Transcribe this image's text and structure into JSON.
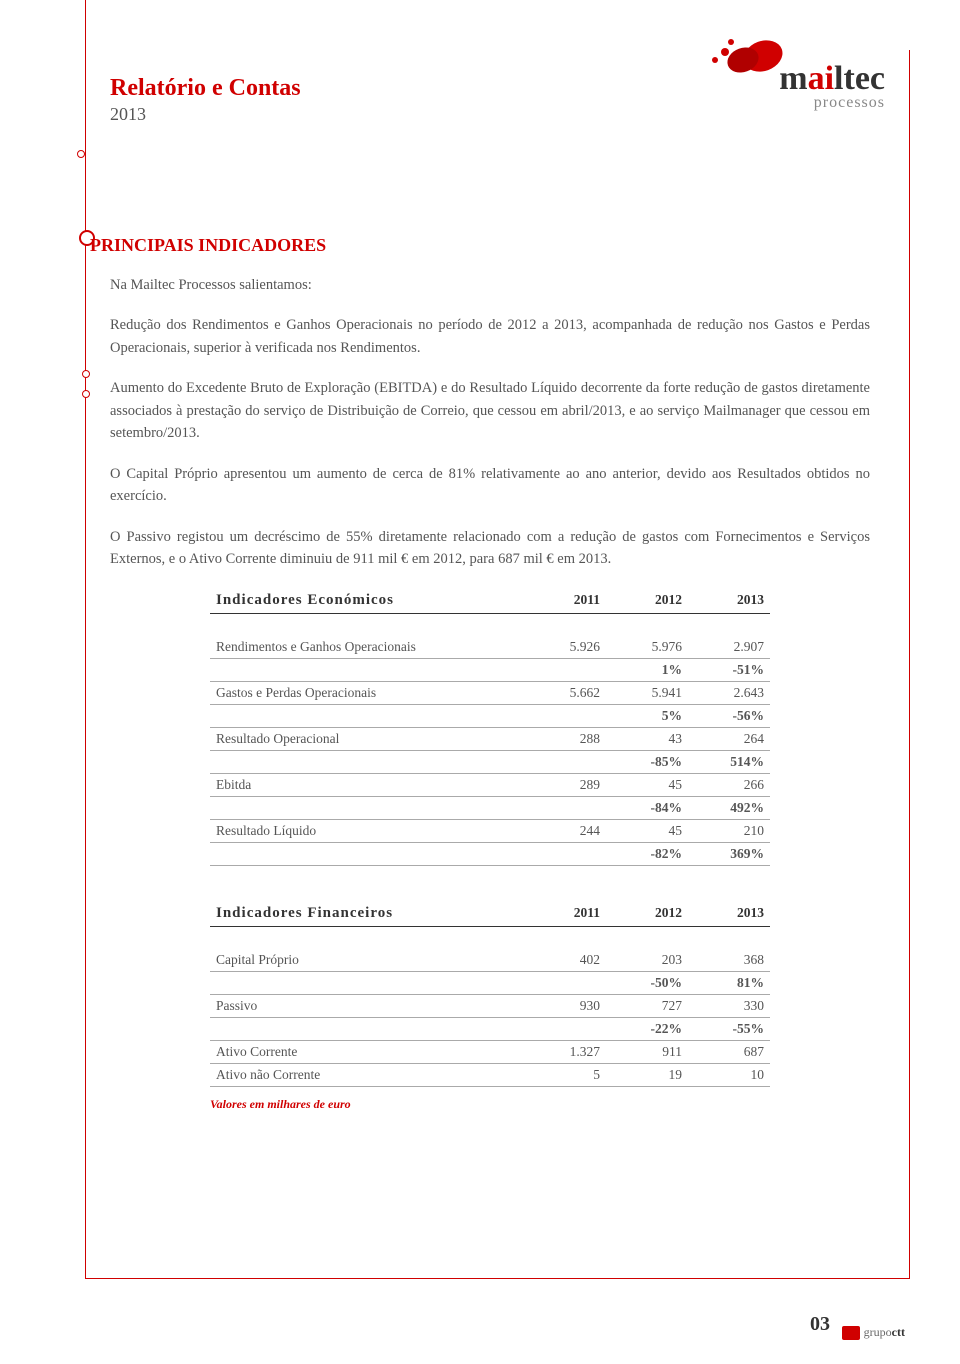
{
  "brand": {
    "name_a": "m",
    "name_b": "ai",
    "name_c": "ltec",
    "sub": "processos"
  },
  "header": {
    "title": "Relatório e Contas",
    "year": "2013"
  },
  "section_title": "PRINCIPAIS INDICADORES",
  "p1": "Na Mailtec Processos salientamos:",
  "p2": "Redução dos Rendimentos e Ganhos Operacionais no período de 2012 a 2013, acompanhada de redução nos Gastos e Perdas Operacionais, superior à verificada nos Rendimentos.",
  "p3": "Aumento do Excedente Bruto de Exploração (EBITDA) e do Resultado Líquido decorrente da forte redução de gastos diretamente associados à prestação do serviço de Distribuição de Correio, que cessou em abril/2013, e ao serviço Mailmanager que cessou em setembro/2013.",
  "p4": "O Capital Próprio apresentou um aumento de cerca de 81% relativamente ao ano anterior, devido aos Resultados obtidos no exercício.",
  "p5": "O Passivo registou um decréscimo de 55% diretamente relacionado com a redução de gastos com Fornecimentos e Serviços Externos, e o Ativo Corrente diminuiu de 911 mil € em 2012, para 687 mil € em 2013.",
  "econ": {
    "title": "Indicadores Económicos",
    "cols": [
      "2011",
      "2012",
      "2013"
    ],
    "rows": [
      {
        "label": "Rendimentos e Ganhos Operacionais",
        "v": [
          "5.926",
          "5.976",
          "2.907"
        ],
        "pct": [
          "",
          "1%",
          "-51%"
        ]
      },
      {
        "label": "Gastos e Perdas Operacionais",
        "v": [
          "5.662",
          "5.941",
          "2.643"
        ],
        "pct": [
          "",
          "5%",
          "-56%"
        ]
      },
      {
        "label": "Resultado Operacional",
        "v": [
          "288",
          "43",
          "264"
        ],
        "pct": [
          "",
          "-85%",
          "514%"
        ]
      },
      {
        "label": "Ebitda",
        "v": [
          "289",
          "45",
          "266"
        ],
        "pct": [
          "",
          "-84%",
          "492%"
        ]
      },
      {
        "label": "Resultado Líquido",
        "v": [
          "244",
          "45",
          "210"
        ],
        "pct": [
          "",
          "-82%",
          "369%"
        ]
      }
    ]
  },
  "fin": {
    "title": "Indicadores Financeiros",
    "cols": [
      "2011",
      "2012",
      "2013"
    ],
    "rows": [
      {
        "label": "Capital Próprio",
        "v": [
          "402",
          "203",
          "368"
        ],
        "pct": [
          "",
          "-50%",
          "81%"
        ]
      },
      {
        "label": "Passivo",
        "v": [
          "930",
          "727",
          "330"
        ],
        "pct": [
          "",
          "-22%",
          "-55%"
        ]
      },
      {
        "label": "Ativo Corrente",
        "v": [
          "1.327",
          "911",
          "687"
        ],
        "pct": null
      },
      {
        "label": "Ativo não Corrente",
        "v": [
          "5",
          "19",
          "10"
        ],
        "pct": null
      }
    ]
  },
  "footnote": "Valores em milhares de euro",
  "pagenum": "03",
  "footer": {
    "group": "grupo",
    "co": "ctt"
  }
}
